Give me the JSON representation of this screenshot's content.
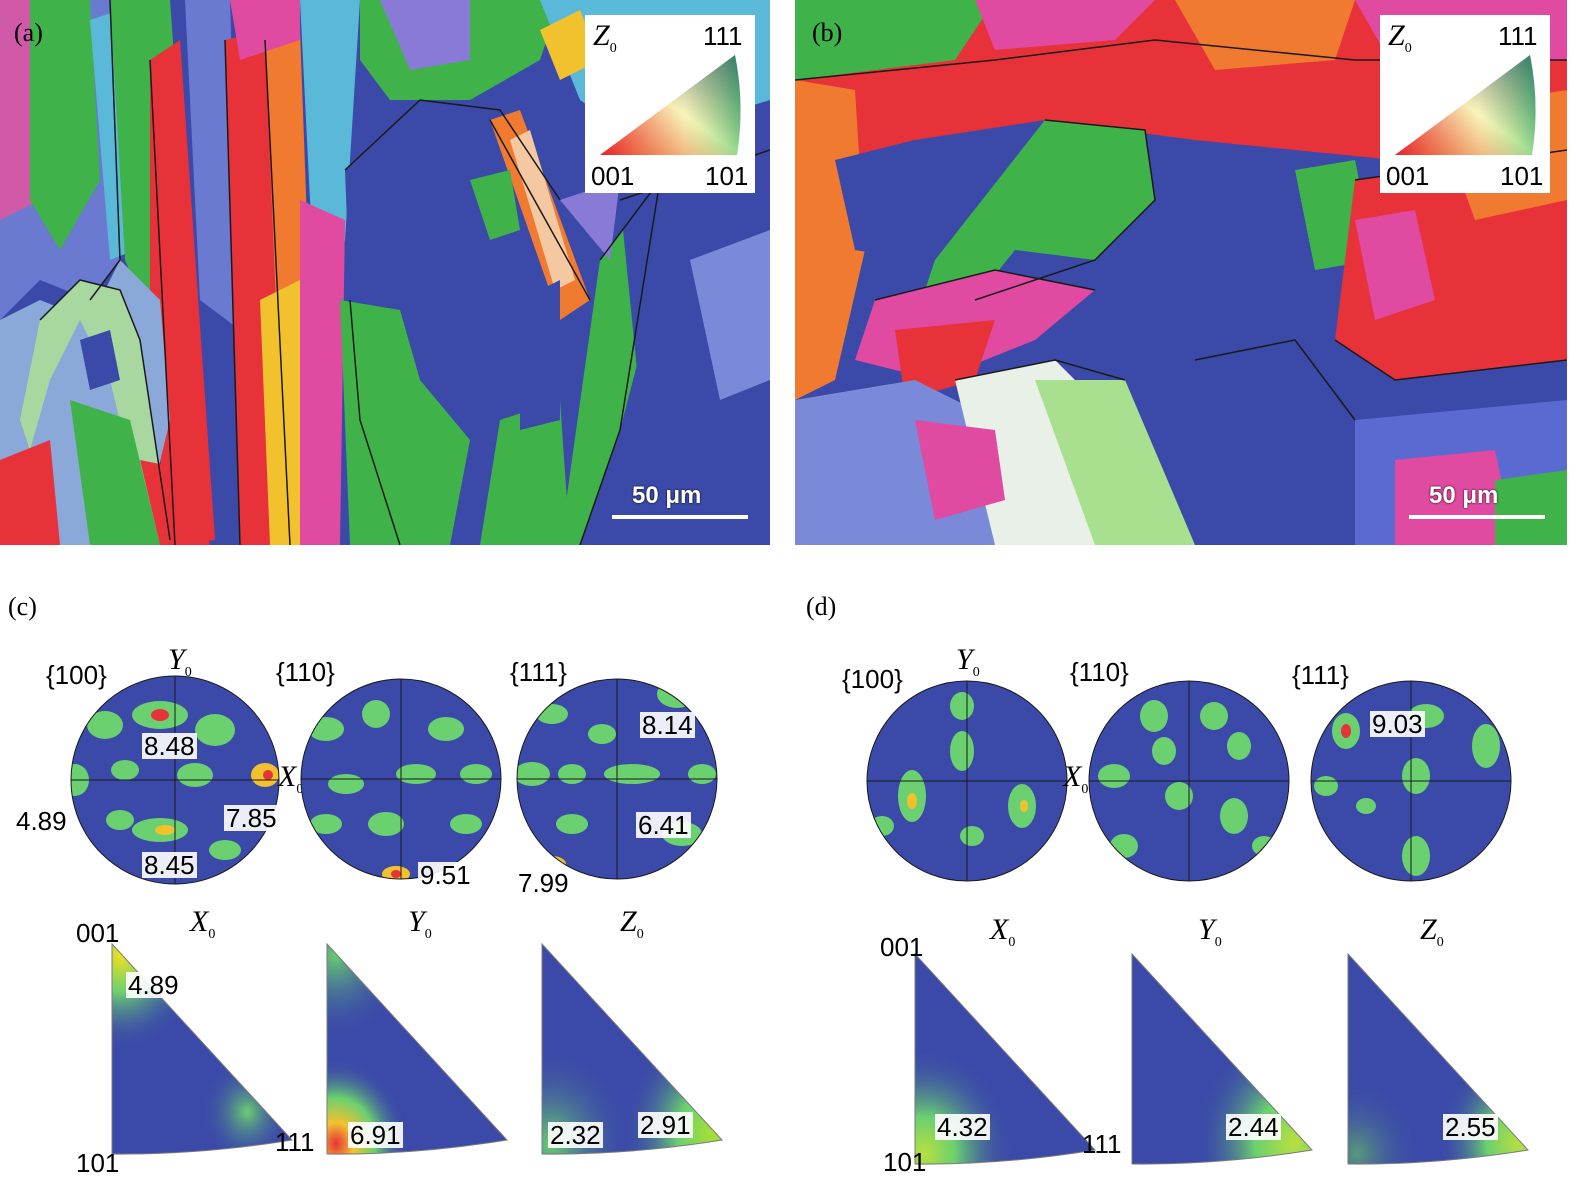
{
  "panels": {
    "a": {
      "letter": "(a)",
      "scale_label": "50 μm",
      "legend": {
        "axis": "Z",
        "axis_sub": "0",
        "c001": "001",
        "c101": "101",
        "c111": "111"
      }
    },
    "b": {
      "letter": "(b)",
      "scale_label": "50 μm",
      "legend": {
        "axis": "Z",
        "axis_sub": "0",
        "c001": "001",
        "c101": "101",
        "c111": "111"
      }
    },
    "c": {
      "letter": "(c)",
      "pole_figures": {
        "p100": {
          "label": "{100}",
          "y_axis": "Y",
          "y_sub": "0",
          "x_axis": "X",
          "x_sub": "0",
          "values": [
            "8.48",
            "4.89",
            "7.85",
            "8.45"
          ]
        },
        "p110": {
          "label": "{110}",
          "values": [
            "9.51"
          ]
        },
        "p111": {
          "label": "{111}",
          "values": [
            "8.14",
            "6.41",
            "7.99"
          ]
        }
      },
      "ipf": {
        "x": {
          "axis": "X",
          "sub": "0",
          "c001": "001",
          "c101": "101",
          "c111": "111",
          "values": [
            "4.89"
          ]
        },
        "y": {
          "axis": "Y",
          "sub": "0",
          "values": [
            "6.91"
          ]
        },
        "z": {
          "axis": "Z",
          "sub": "0",
          "values": [
            "2.32",
            "2.91"
          ]
        }
      }
    },
    "d": {
      "letter": "(d)",
      "pole_figures": {
        "p100": {
          "label": "{100}",
          "y_axis": "Y",
          "y_sub": "0",
          "x_axis": "X",
          "x_sub": "0"
        },
        "p110": {
          "label": "{110}"
        },
        "p111": {
          "label": "{111}",
          "values": [
            "9.03"
          ]
        }
      },
      "ipf": {
        "x": {
          "axis": "X",
          "sub": "0",
          "c001": "001",
          "c101": "101",
          "c111": "111",
          "values": [
            "4.32"
          ]
        },
        "y": {
          "axis": "Y",
          "sub": "0",
          "values": [
            "2.44"
          ]
        },
        "z": {
          "axis": "Z",
          "sub": "0",
          "values": [
            "2.55"
          ]
        }
      }
    }
  },
  "colors": {
    "blue": "#3b4aa8",
    "green": "#3fb24a",
    "red": "#e8323a",
    "magenta": "#e04aa0",
    "cyan": "#5ab8d8",
    "yellow": "#f2c22e"
  }
}
